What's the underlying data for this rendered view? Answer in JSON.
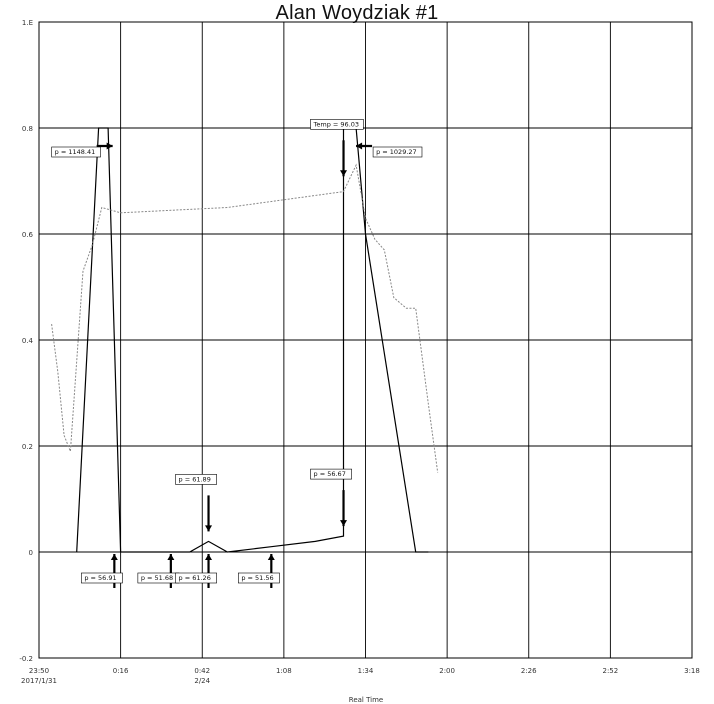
{
  "chart_data": {
    "type": "line",
    "title": "Alan Woydziak #1",
    "xlabel": "Real Time",
    "ylabel": "",
    "grid": true,
    "x_ticks": [
      "23:50",
      "0:16",
      "0:42",
      "1:08",
      "1:34",
      "2:00",
      "2:26",
      "2:52",
      "3:18"
    ],
    "x_subticks": [
      "2017/1/31",
      "",
      "2/24",
      "",
      "",
      "",
      "",
      "",
      ""
    ],
    "y_ticks_left": [
      "1.E",
      "0.8",
      "0.6",
      "0.4",
      "0.2",
      "0",
      "-0.2"
    ],
    "y_ticks_right": [
      "",
      "",
      "",
      "",
      "",
      "",
      ""
    ],
    "x_range_minutes": [
      0,
      208
    ],
    "y_range": [
      -0.2,
      1.0
    ],
    "series": [
      {
        "color": "#000000",
        "points": [
          [
            12,
            0.0
          ],
          [
            19,
            0.8
          ],
          [
            22,
            0.8
          ],
          [
            26,
            0.0
          ],
          [
            34,
            0.0
          ],
          [
            42,
            0.0
          ],
          [
            48,
            0.0
          ],
          [
            54,
            0.02
          ],
          [
            60,
            0.0
          ],
          [
            74,
            0.01
          ],
          [
            88,
            0.02
          ],
          [
            97,
            0.03
          ],
          [
            97,
            0.8
          ],
          [
            101,
            0.8
          ],
          [
            104,
            0.6
          ],
          [
            112,
            0.3
          ],
          [
            120,
            0.0
          ],
          [
            124,
            0.0
          ]
        ]
      },
      {
        "color": "#888888",
        "points": [
          [
            4,
            0.43
          ],
          [
            6,
            0.34
          ],
          [
            8,
            0.22
          ],
          [
            10,
            0.19
          ],
          [
            14,
            0.53
          ],
          [
            17,
            0.58
          ],
          [
            20,
            0.65
          ],
          [
            26,
            0.64
          ],
          [
            60,
            0.65
          ],
          [
            97,
            0.68
          ],
          [
            101,
            0.73
          ],
          [
            104,
            0.63
          ],
          [
            107,
            0.59
          ],
          [
            110,
            0.57
          ],
          [
            113,
            0.48
          ],
          [
            117,
            0.46
          ],
          [
            120,
            0.46
          ],
          [
            124,
            0.28
          ],
          [
            127,
            0.15
          ]
        ]
      }
    ],
    "annotations": [
      {
        "text": "p = 1148.41",
        "x": 19,
        "y": 0.8,
        "arrow": "right"
      },
      {
        "text": "Temp = 96.03",
        "x": 97,
        "y": 0.69,
        "arrow": "down"
      },
      {
        "text": "p = 1029.27",
        "x": 101,
        "y": 0.8,
        "arrow": "left"
      },
      {
        "text": "p = 56.91",
        "x": 24,
        "y": 0.0,
        "arrow": "up"
      },
      {
        "text": "p = 51.68",
        "x": 42,
        "y": 0.0,
        "arrow": "up"
      },
      {
        "text": "p = 61.89",
        "x": 54,
        "y": 0.02,
        "arrow": "down"
      },
      {
        "text": "p = 61.26",
        "x": 54,
        "y": 0.0,
        "arrow": "up"
      },
      {
        "text": "p = 51.56",
        "x": 74,
        "y": 0.0,
        "arrow": "up"
      },
      {
        "text": "p = 56.67",
        "x": 97,
        "y": 0.03,
        "arrow": "down"
      }
    ]
  }
}
